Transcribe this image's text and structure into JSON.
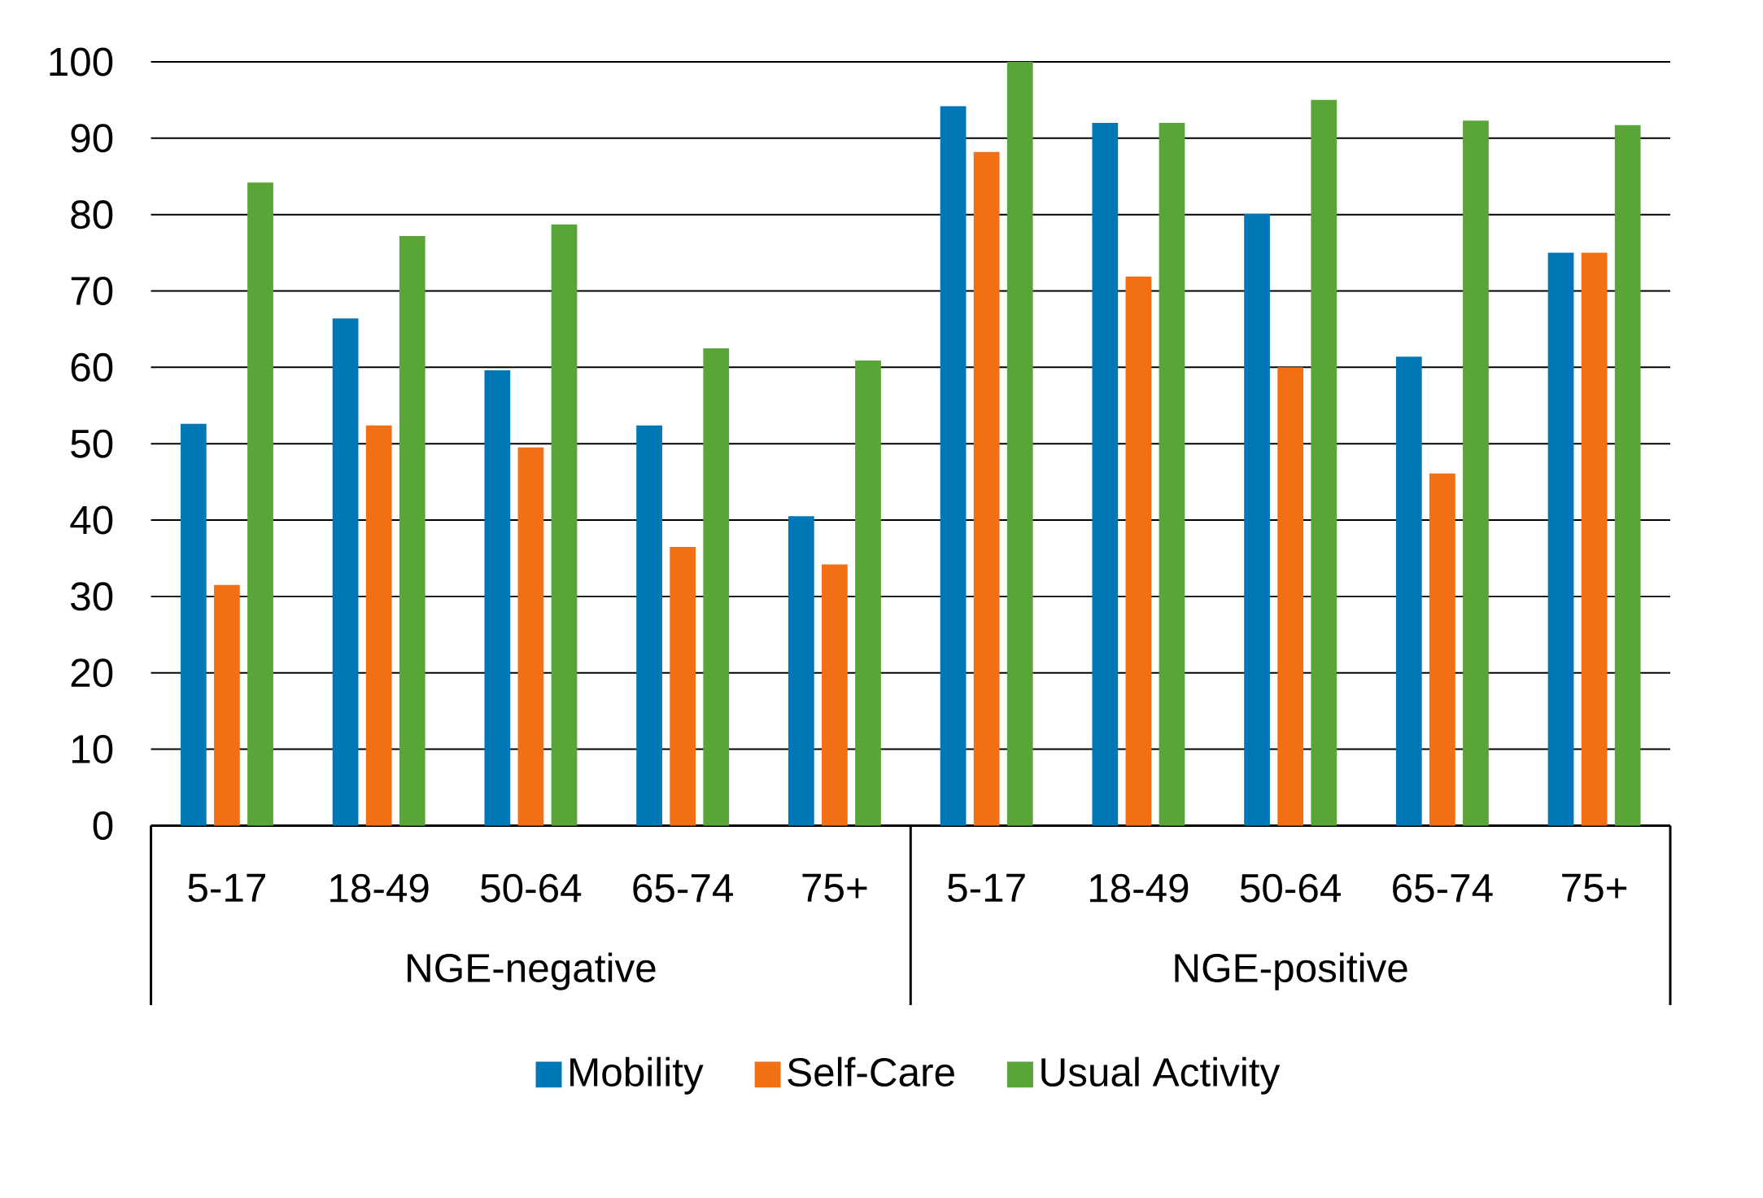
{
  "chart_data": {
    "type": "bar",
    "categories": [
      "5-17",
      "18-49",
      "50-64",
      "65-74",
      "75+",
      "5-17",
      "18-49",
      "50-64",
      "65-74",
      "75+"
    ],
    "series": [
      {
        "name": "Mobility",
        "color": "#0077b6",
        "values": [
          52.6,
          66.4,
          59.6,
          52.4,
          40.5,
          94.2,
          92,
          80.1,
          61.4,
          75
        ]
      },
      {
        "name": "Self-Care",
        "color": "#f26f16",
        "values": [
          31.5,
          52.4,
          49.5,
          36.5,
          34.2,
          88.2,
          71.9,
          60,
          46.1,
          75
        ]
      },
      {
        "name": "Usual Activity",
        "color": "#5aa538",
        "values": [
          84.2,
          77.2,
          78.7,
          62.5,
          60.9,
          100,
          92,
          95,
          92.3,
          91.7
        ]
      }
    ],
    "annotations": [
      "NGE-negative",
      "NGE-positive"
    ],
    "ylim": [
      0,
      100
    ],
    "yticks": [
      0,
      10,
      20,
      30,
      40,
      50,
      60,
      70,
      80,
      90,
      100
    ],
    "grid": "y",
    "legend": "bottom"
  }
}
